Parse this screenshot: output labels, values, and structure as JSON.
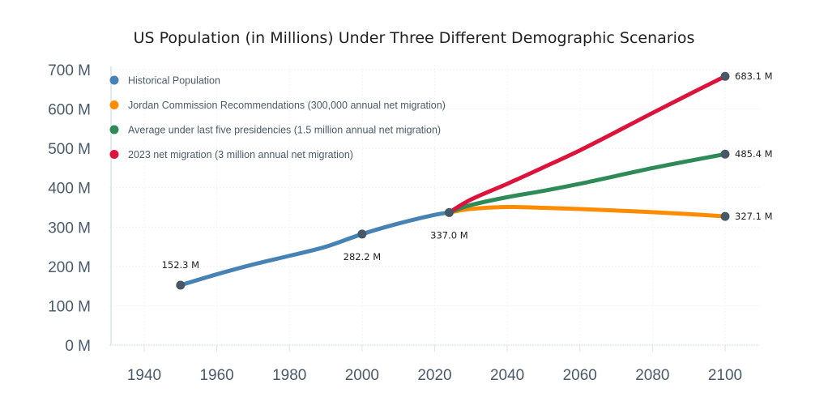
{
  "chart_data": {
    "type": "line",
    "title": "US Population (in Millions) Under Three Different Demographic Scenarios",
    "xlabel": "",
    "ylabel": "",
    "xlim": [
      1930,
      2108
    ],
    "ylim": [
      0,
      700
    ],
    "x_ticks": [
      1940,
      1960,
      1980,
      2000,
      2020,
      2040,
      2060,
      2080,
      2100
    ],
    "y_ticks": [
      0,
      100,
      200,
      300,
      400,
      500,
      600,
      700
    ],
    "y_tick_labels": [
      "0 M",
      "100 M",
      "200 M",
      "300 M",
      "400 M",
      "500 M",
      "600 M",
      "700 M"
    ],
    "grid": true,
    "legend_position": "top-left",
    "series": [
      {
        "name": "Historical Population",
        "color": "#4682b4",
        "x": [
          1950,
          1960,
          1970,
          1980,
          1990,
          2000,
          2010,
          2020,
          2024
        ],
        "values": [
          152.3,
          180.0,
          205.0,
          227.0,
          250.0,
          282.2,
          309.0,
          331.0,
          337.0
        ]
      },
      {
        "name": "Jordan Commission Recommendations (300,000 annual net migration)",
        "color": "#ff8c00",
        "x": [
          2024,
          2030,
          2040,
          2050,
          2060,
          2070,
          2080,
          2090,
          2100
        ],
        "values": [
          337.0,
          346.0,
          351.0,
          349.0,
          346.0,
          342.0,
          338.0,
          333.0,
          327.1
        ]
      },
      {
        "name": "Average under last five presidencies (1.5 million annual net migration)",
        "color": "#2e8b57",
        "x": [
          2024,
          2030,
          2040,
          2050,
          2060,
          2070,
          2080,
          2090,
          2100
        ],
        "values": [
          337.0,
          356.0,
          376.0,
          392.0,
          410.0,
          430.0,
          450.0,
          468.0,
          485.4
        ]
      },
      {
        "name": "2023 net migration (3 million annual net migration)",
        "color": "#dc143c",
        "x": [
          2024,
          2030,
          2040,
          2050,
          2060,
          2070,
          2080,
          2090,
          2100
        ],
        "values": [
          337.0,
          370.0,
          410.0,
          452.0,
          495.0,
          542.0,
          590.0,
          637.0,
          683.1
        ]
      }
    ],
    "annotations": [
      {
        "x": 1950,
        "y": 152.3,
        "text": "152.3 M",
        "position": "above"
      },
      {
        "x": 2000,
        "y": 282.2,
        "text": "282.2 M",
        "position": "below"
      },
      {
        "x": 2024,
        "y": 337.0,
        "text": "337.0 M",
        "position": "below"
      },
      {
        "x": 2100,
        "y": 683.1,
        "text": "683.1 M",
        "position": "right"
      },
      {
        "x": 2100,
        "y": 485.4,
        "text": "485.4 M",
        "position": "right"
      },
      {
        "x": 2100,
        "y": 327.1,
        "text": "327.1 M",
        "position": "right"
      }
    ],
    "marker_color": "#465866"
  }
}
